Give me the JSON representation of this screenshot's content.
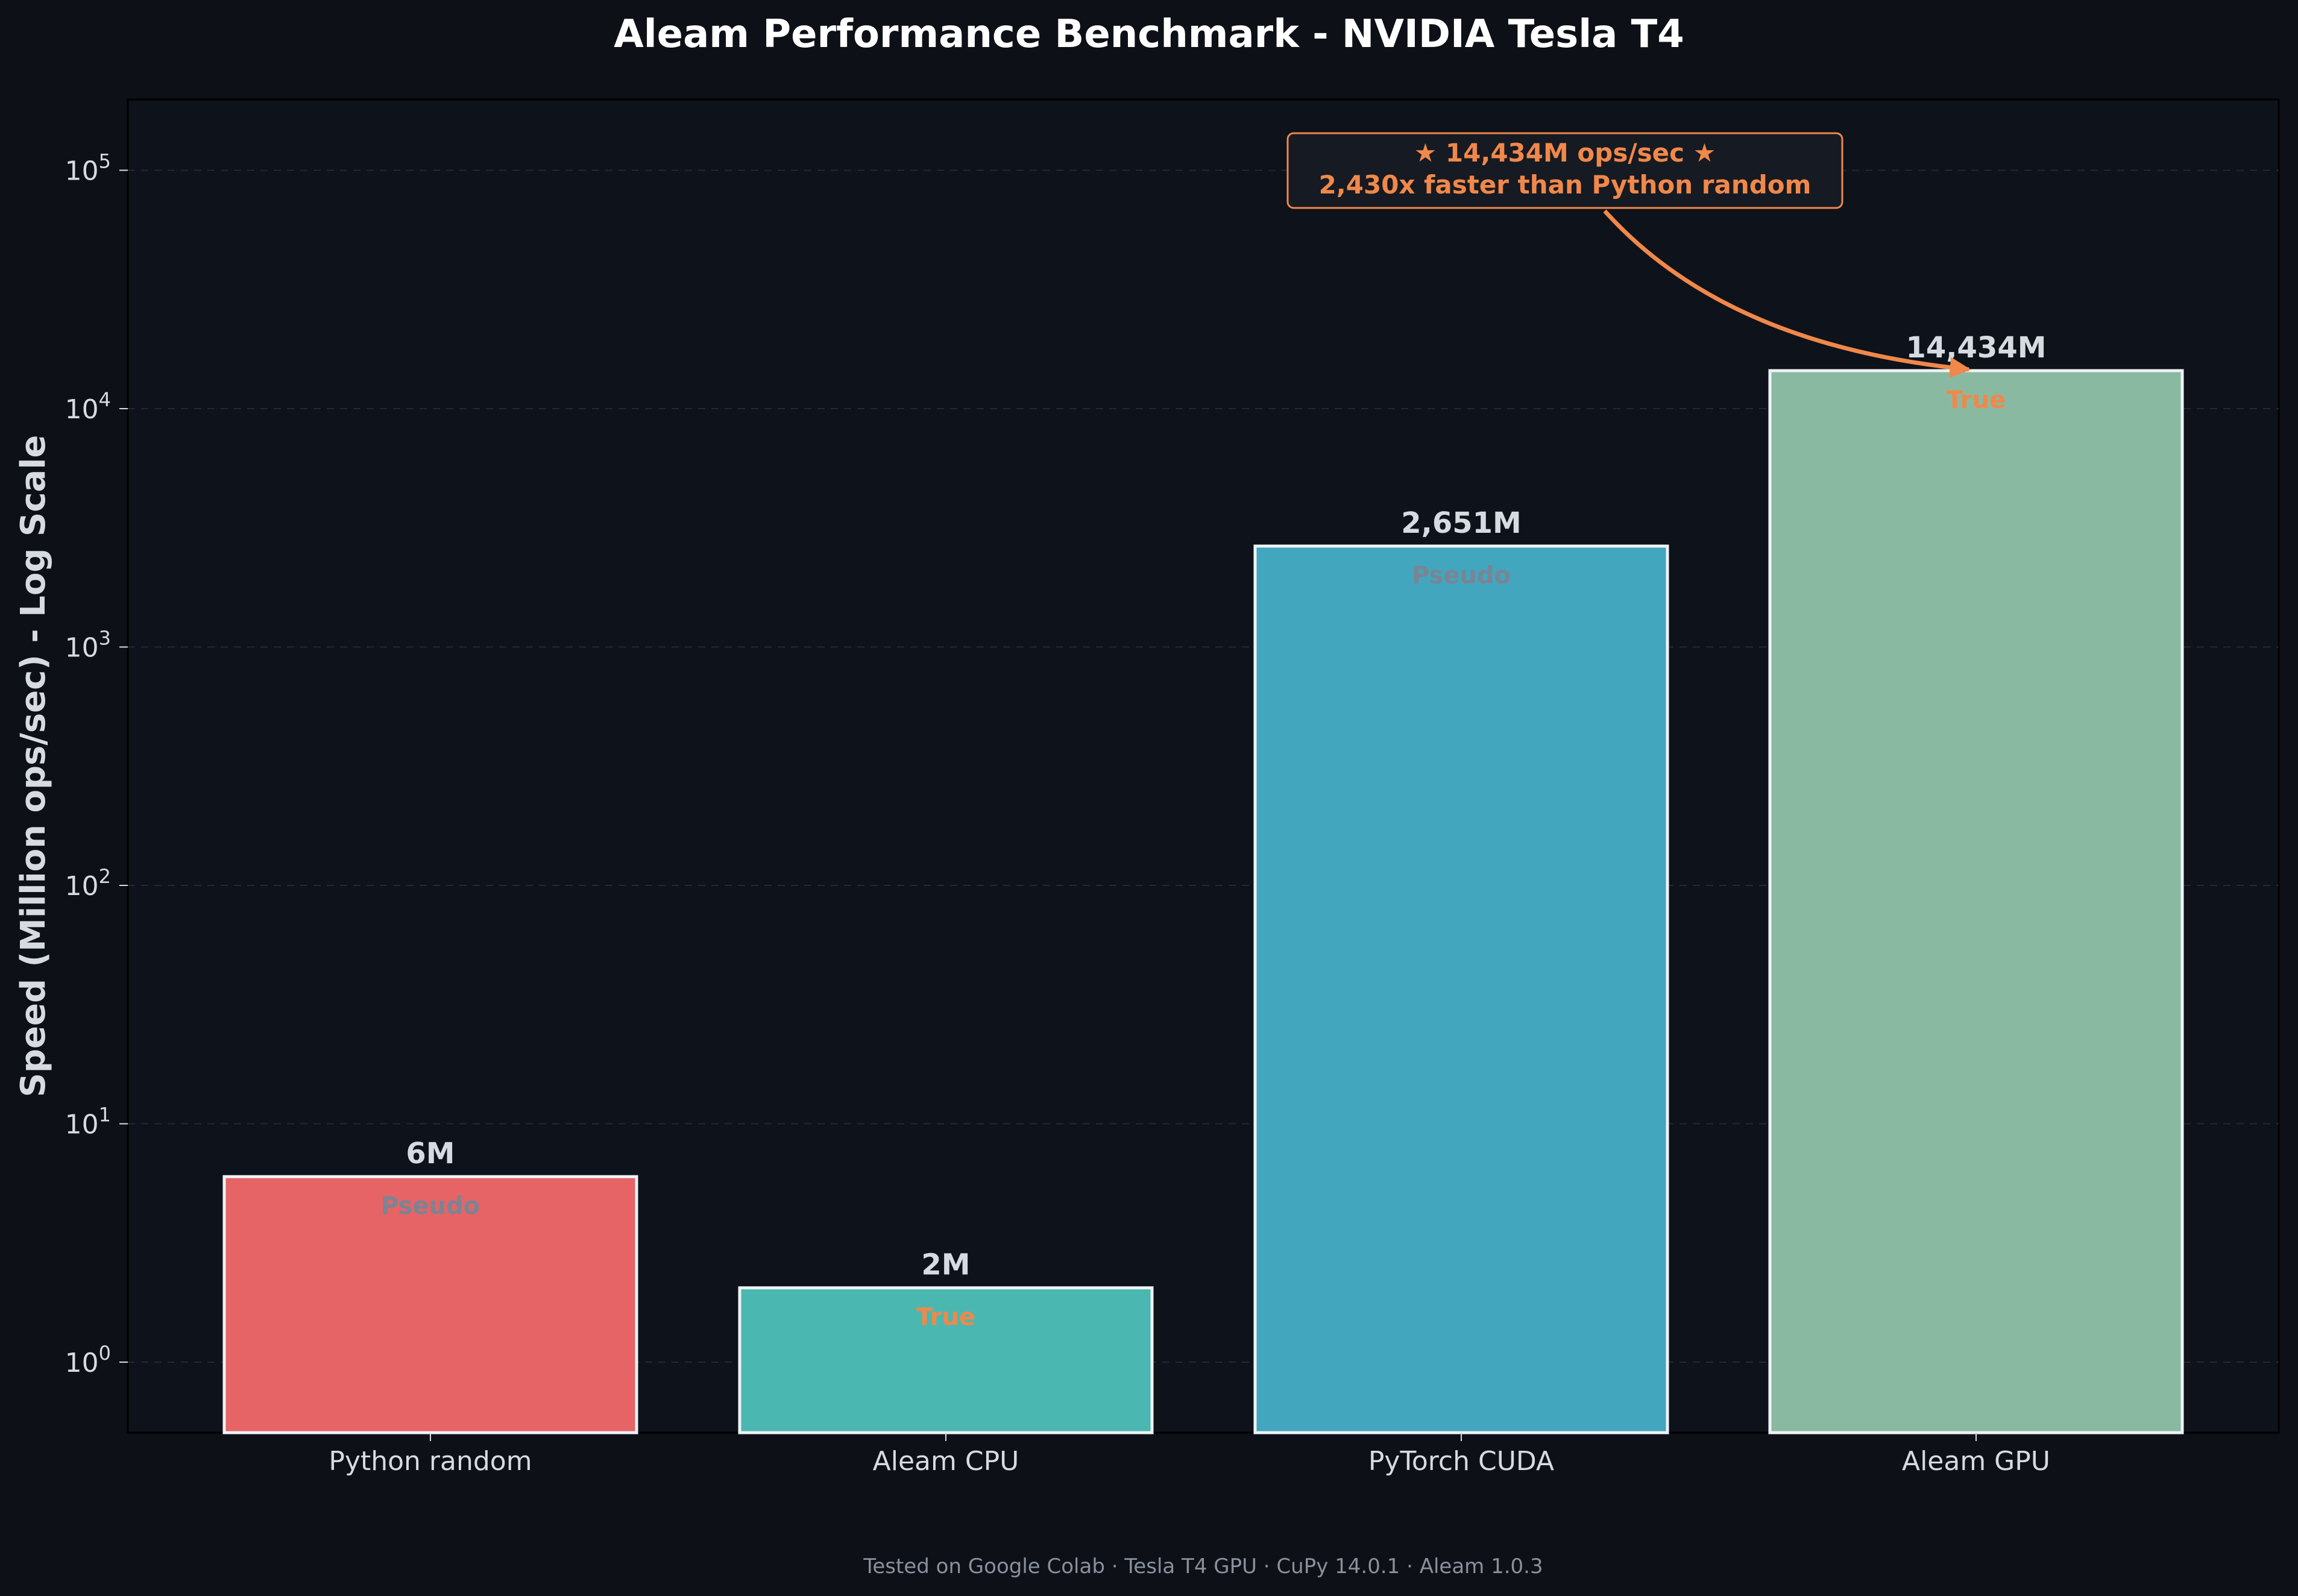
{
  "chart_data": {
    "type": "bar",
    "title": "Aleam Performance Benchmark - NVIDIA Tesla T4",
    "ylabel": "Speed (Million ops/sec) - Log Scale",
    "xlabel": "",
    "yscale": "log",
    "ylim": [
      0.5,
      200000
    ],
    "grid": true,
    "categories": [
      "Python random",
      "Aleam CPU",
      "PyTorch CUDA",
      "Aleam GPU"
    ],
    "values": [
      6,
      2.05,
      2651,
      14434
    ],
    "value_labels": [
      "6M",
      "2M",
      "2,651M",
      "14,434M"
    ],
    "randomness_labels": [
      "Pseudo",
      "True",
      "Pseudo",
      "True"
    ],
    "yticks": [
      {
        "value": 1,
        "base": "10",
        "exp": "0"
      },
      {
        "value": 10,
        "base": "10",
        "exp": "1"
      },
      {
        "value": 100,
        "base": "10",
        "exp": "2"
      },
      {
        "value": 1000,
        "base": "10",
        "exp": "3"
      },
      {
        "value": 10000,
        "base": "10",
        "exp": "4"
      },
      {
        "value": 100000,
        "base": "10",
        "exp": "5"
      }
    ],
    "annotation": {
      "line1": "★ 14,434M ops/sec ★",
      "line2": "2,430x faster than Python random",
      "target_category": "Aleam GPU",
      "target_value": 14434
    },
    "footer": "Tested on Google Colab · Tesla T4 GPU · CuPy 14.0.1 · Aleam 1.0.3"
  },
  "colors": {
    "background": "#0d1017",
    "plot_background": "#0e121a",
    "bar_colors": [
      "#e66465",
      "#4ab8b0",
      "#42a6bf",
      "#8ab9a2"
    ],
    "bar_edge": "#eef2f5",
    "pseudo_label": "#7a8494",
    "true_label": "#f0884a",
    "accent": "#f0884a",
    "text": "#d6dbe2",
    "title": "#ffffff",
    "footer": "#8a919c"
  }
}
